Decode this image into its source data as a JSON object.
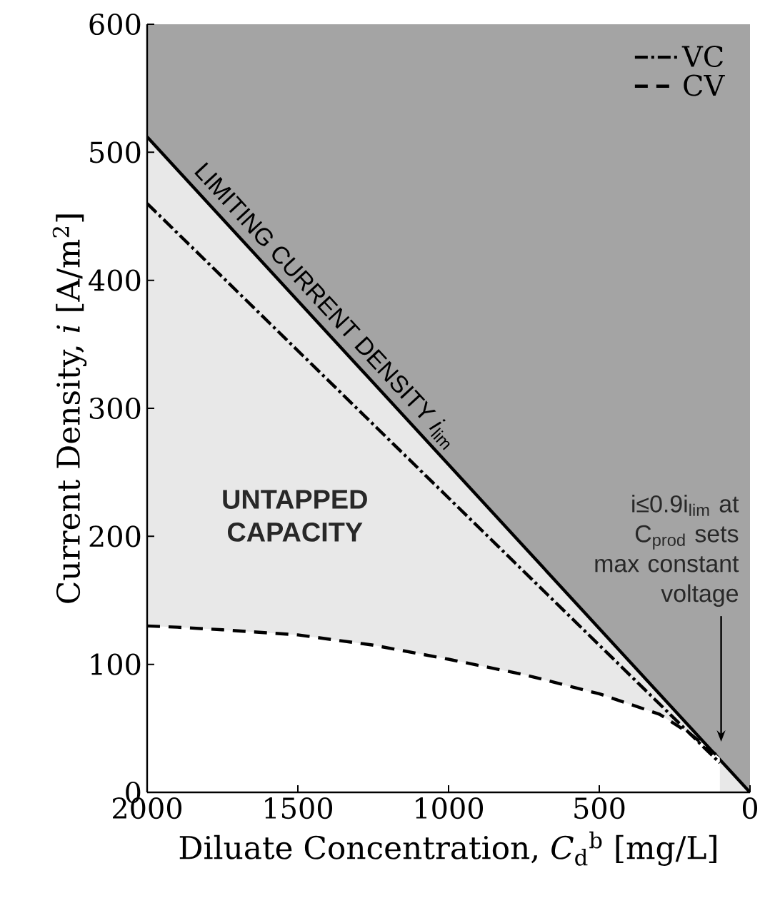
{
  "chart_data": {
    "type": "line",
    "xlabel": "Diluate Concentration, *C*$_{d}$$^{b}$ [mg/L]",
    "ylabel": "Current Density, *i* [A/m$^{2}$]",
    "xlim": [
      2000,
      0
    ],
    "ylim": [
      0,
      600
    ],
    "xticks": [
      2000,
      1500,
      1000,
      500,
      0
    ],
    "yticks": [
      0,
      100,
      200,
      300,
      400,
      500,
      600
    ],
    "legend": "top right",
    "series": [
      {
        "type": "area",
        "color": "#e8e8e8",
        "line_style": "solid",
        "x": [
          2000,
          0
        ],
        "values": [
          512,
          0
        ]
      },
      {
        "type": "area",
        "name": "CV",
        "color": "#ffffff",
        "line_style": "dashed",
        "x": [
          2000,
          1900,
          1750,
          1500,
          1250,
          1000,
          750,
          500,
          300,
          200,
          100
        ],
        "values": [
          130,
          129,
          127,
          123,
          115,
          104,
          92,
          77,
          61,
          46,
          27
        ]
      },
      {
        "name": "VC",
        "color": "#000000",
        "line_style": "dashdot",
        "x": [
          2000,
          100
        ],
        "values": [
          460,
          23
        ]
      }
    ],
    "annotations": [
      {
        "text": "LIMITING CURRENT DENSITY *i*$_{lim}$",
        "x": 1450,
        "y": 371
      },
      "UNTAPPED CAPACITY",
      "i≤0.9i$_{lim}$ at C$_{prod}$ sets max constant voltage"
    ]
  }
}
